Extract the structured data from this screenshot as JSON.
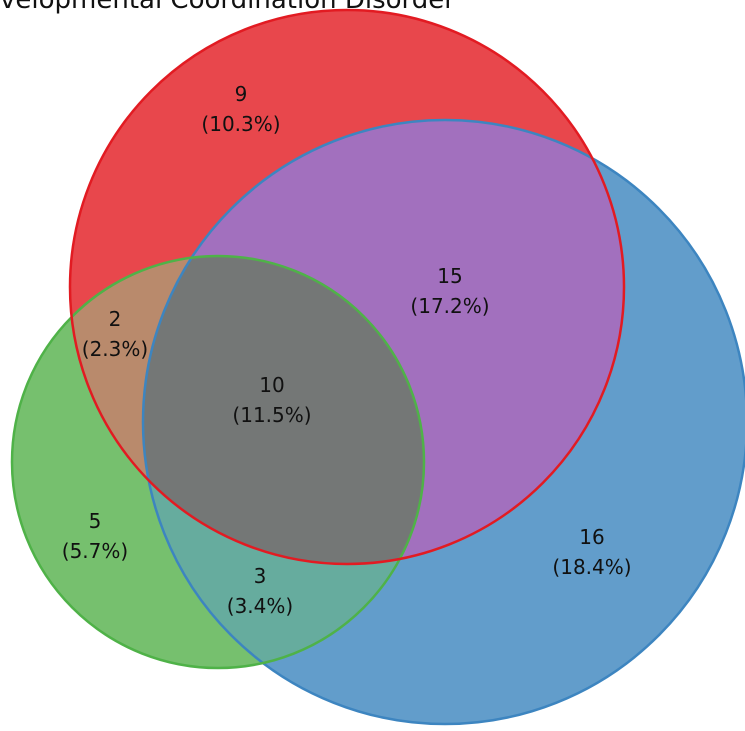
{
  "title": "velopmental Coordination Disorder",
  "colors": {
    "red": "#E8474C",
    "red_edge": "#E21B22",
    "blue": "#629DCB",
    "blue_edge": "#3D85C0",
    "green": "#76C06E",
    "green_edge": "#4FB248",
    "red_blue": "#A270BE",
    "red_green": "#B98A6C",
    "blue_green": "#66AC9E",
    "all_three": "#747776"
  },
  "regions": [
    {
      "key": "red_only",
      "count": "9",
      "percent": "(10.3%)"
    },
    {
      "key": "red_blue",
      "count": "15",
      "percent": "(17.2%)"
    },
    {
      "key": "red_green",
      "count": "2",
      "percent": "(2.3%)"
    },
    {
      "key": "all_three",
      "count": "10",
      "percent": "(11.5%)"
    },
    {
      "key": "green_only",
      "count": "5",
      "percent": "(5.7%)"
    },
    {
      "key": "green_blue",
      "count": "3",
      "percent": "(3.4%)"
    },
    {
      "key": "blue_only",
      "count": "16",
      "percent": "(18.4%)"
    }
  ]
}
